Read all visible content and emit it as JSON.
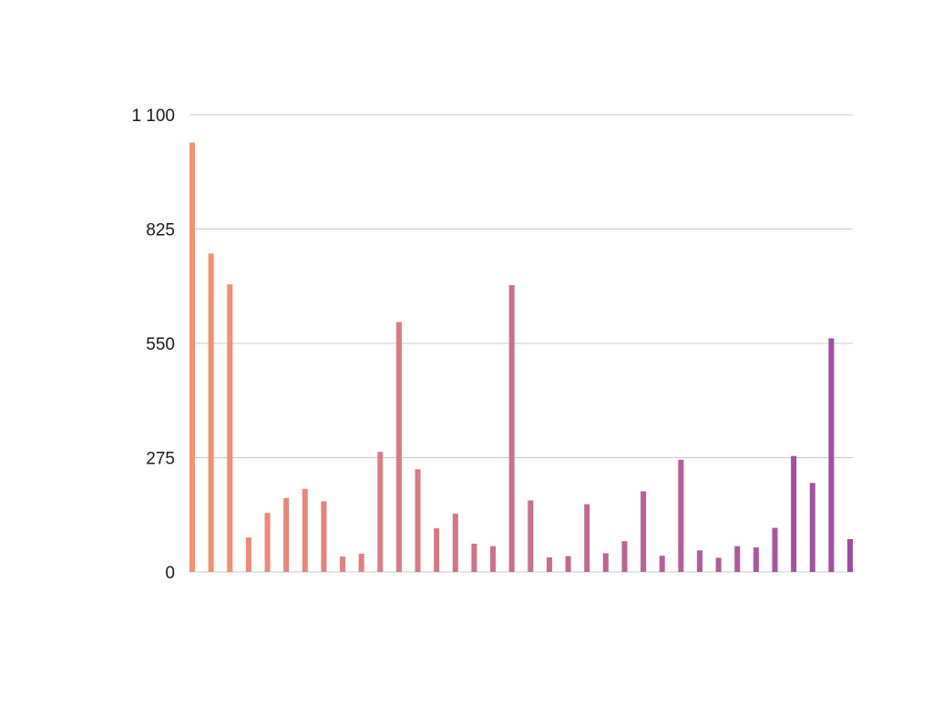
{
  "chart_data": {
    "type": "bar",
    "title": "",
    "xlabel": "",
    "ylabel": "",
    "ylim": [
      0,
      1100
    ],
    "yticks": [
      {
        "value": 0,
        "label": "0"
      },
      {
        "value": 275,
        "label": "275"
      },
      {
        "value": 550,
        "label": "550"
      },
      {
        "value": 825,
        "label": "825"
      },
      {
        "value": 1100,
        "label": "1 100"
      }
    ],
    "grid": true,
    "legend": "none",
    "color_start": "#f9906f",
    "color_end": "#a04ba8",
    "grid_color": "#cccccc",
    "values": [
      1033,
      766,
      692,
      83,
      142,
      178,
      200,
      170,
      37,
      44,
      289,
      601,
      247,
      105,
      140,
      68,
      62,
      690,
      172,
      35,
      38,
      163,
      45,
      74,
      194,
      39,
      270,
      52,
      34,
      62,
      59,
      106,
      279,
      214,
      562,
      79
    ]
  }
}
